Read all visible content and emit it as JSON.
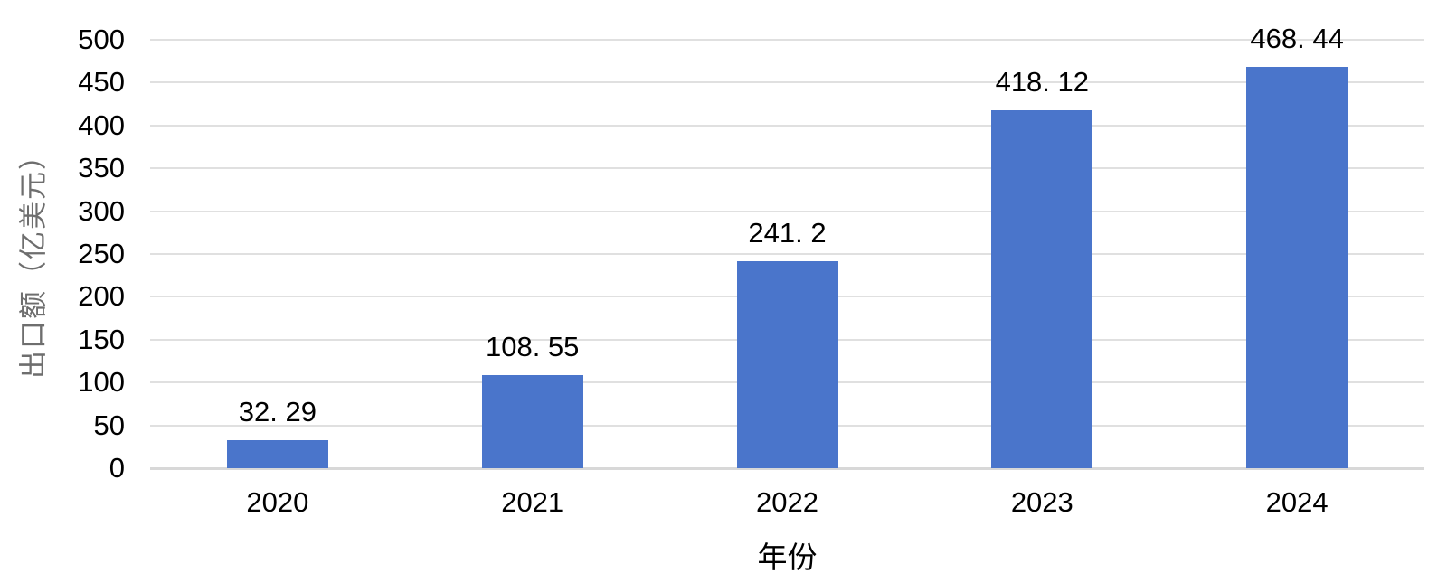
{
  "chart_data": {
    "type": "bar",
    "title": "",
    "xlabel": "年份",
    "ylabel": "出口额（亿美元）",
    "categories": [
      "2020",
      "2021",
      "2022",
      "2023",
      "2024"
    ],
    "values": [
      32.29,
      108.55,
      241.2,
      418.12,
      468.44
    ],
    "value_labels": [
      "32. 29",
      "108. 55",
      "241. 2",
      "418. 12",
      "468. 44"
    ],
    "ylim": [
      0,
      500
    ],
    "yticks": [
      0,
      50,
      100,
      150,
      200,
      250,
      300,
      350,
      400,
      450,
      500
    ],
    "grid": "horizontal",
    "legend": "none",
    "colors": {
      "bar": "#4A75CB",
      "gridline": "#E0E0E0",
      "axis_line": "#D8D8D8",
      "tick_label": "#000000",
      "value_label": "#000000",
      "xlabel_color": "#000000",
      "ylabel_color": "#6E6E6E",
      "background": "#FFFFFF"
    }
  }
}
